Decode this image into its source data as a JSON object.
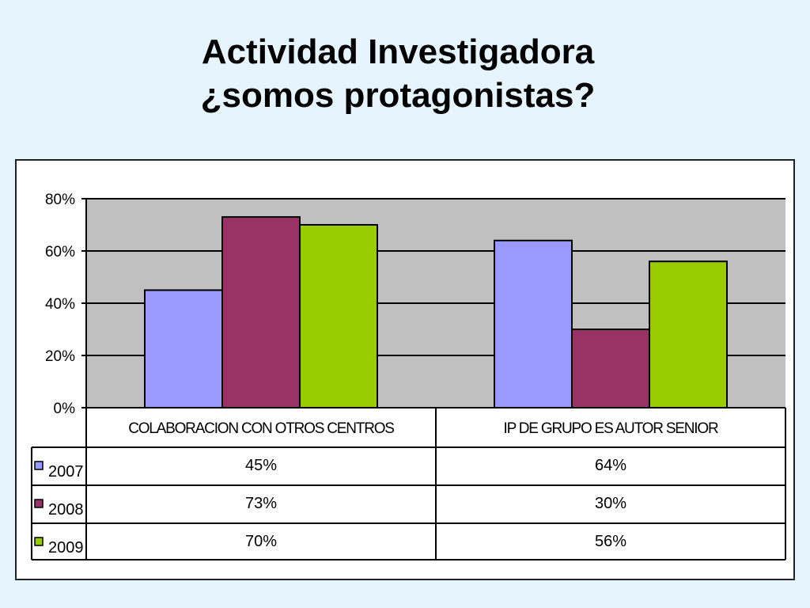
{
  "slide": {
    "title_line1": "Actividad Investigadora",
    "title_line2": "¿somos protagonistas?"
  },
  "chart_data": {
    "type": "bar",
    "title": "",
    "xlabel": "",
    "ylabel": "",
    "ylim": [
      0,
      80
    ],
    "y_ticks": [
      "0%",
      "20%",
      "40%",
      "60%",
      "80%"
    ],
    "y_tick_values": [
      0,
      20,
      40,
      60,
      80
    ],
    "grid": true,
    "categories": [
      "COLABORACION CON OTROS CENTROS",
      "IP DE GRUPO ES AUTOR SENIOR"
    ],
    "series": [
      {
        "name": "2007",
        "values": [
          45,
          64
        ],
        "labels": [
          "45%",
          "64%"
        ],
        "color": "#9999ff"
      },
      {
        "name": "2008",
        "values": [
          73,
          30
        ],
        "labels": [
          "73%",
          "30%"
        ],
        "color": "#993366"
      },
      {
        "name": "2009",
        "values": [
          70,
          56
        ],
        "labels": [
          "70%",
          "56%"
        ],
        "color": "#99cc00"
      }
    ],
    "legend": "data-table-left",
    "plot_background": "#c0c0c0"
  }
}
